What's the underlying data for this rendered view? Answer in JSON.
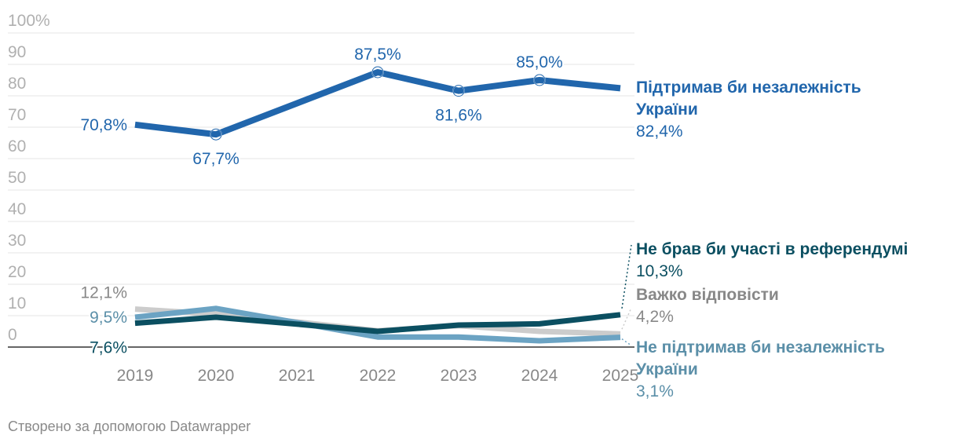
{
  "footer": "Створено за допомогою Datawrapper",
  "chart_data": {
    "type": "line",
    "x": [
      "2019",
      "2020",
      "2021",
      "2022",
      "2023",
      "2024",
      "2025"
    ],
    "y_ticks": [
      "100%",
      "90",
      "80",
      "70",
      "60",
      "50",
      "40",
      "30",
      "20",
      "10",
      "0"
    ],
    "ylim": [
      0,
      100
    ],
    "grid": true,
    "legend": "direct labels at right end of lines",
    "series": [
      {
        "id": "hard",
        "name_lines": [
          "Важко відповісти"
        ],
        "end_label": "4,2%",
        "color": "#cccccc",
        "name_color": "#888888",
        "values": [
          12.1,
          10.5,
          8.0,
          5.2,
          6.8,
          5.0,
          4.2
        ],
        "point_labels": [
          {
            "i": 0,
            "text": "12,1%"
          }
        ]
      },
      {
        "id": "not_support",
        "name_lines": [
          "Не підтримав би незалежність",
          "України"
        ],
        "end_label": "3,1%",
        "color": "#6ba3c3",
        "name_color": "#5b8fa8",
        "values": [
          9.5,
          12.3,
          7.8,
          3.2,
          3.2,
          2.0,
          3.1
        ],
        "point_labels": [
          {
            "i": 0,
            "text": "9,5%"
          }
        ]
      },
      {
        "id": "not_participate",
        "name_lines": [
          "Не брав би участі в референдумі"
        ],
        "end_label": "10,3%",
        "color": "#0b4f61",
        "name_color": "#0b4f61",
        "values": [
          7.6,
          9.5,
          7.3,
          5.0,
          7.0,
          7.4,
          10.3
        ],
        "point_labels": [
          {
            "i": 0,
            "text": "7,6%"
          }
        ]
      },
      {
        "id": "support",
        "name_lines": [
          "Підтримав би незалежність",
          "України"
        ],
        "end_label": "82,4%",
        "color": "#2166ac",
        "name_color": "#2166ac",
        "values": [
          70.8,
          67.7,
          77.6,
          87.5,
          81.6,
          85.0,
          82.4
        ],
        "point_labels": [
          {
            "i": 0,
            "text": "70,8%"
          },
          {
            "i": 1,
            "text": "67,7%"
          },
          {
            "i": 3,
            "text": "87,5%"
          },
          {
            "i": 4,
            "text": "81,6%"
          },
          {
            "i": 5,
            "text": "85,0%"
          }
        ]
      }
    ]
  }
}
